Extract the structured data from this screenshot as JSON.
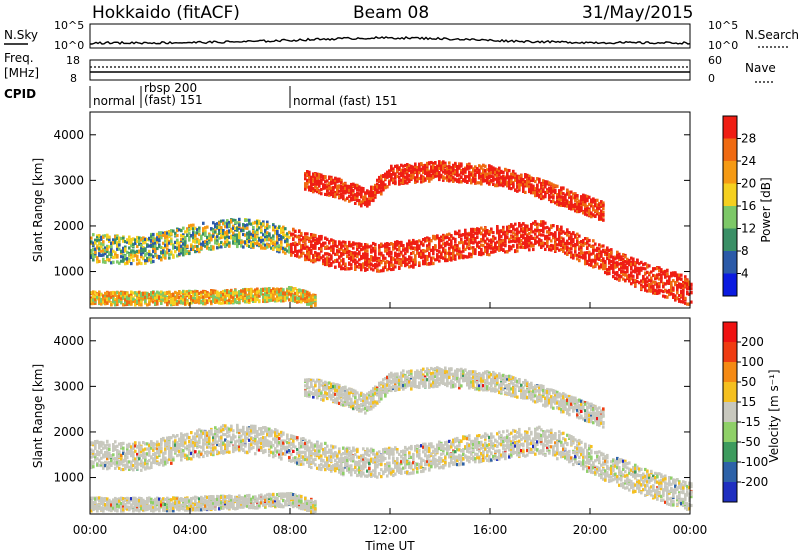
{
  "header": {
    "station": "Hokkaido (fitACF)",
    "beam": "Beam 08",
    "date": "31/May/2015"
  },
  "nsky_panel": {
    "left_label": "N.Sky",
    "left_ticks": [
      "10^5",
      "10^0"
    ],
    "right_ticks": [
      "10^5",
      "10^0"
    ],
    "legend_label": "N.Search"
  },
  "freq_panel": {
    "left_label_1": "Freq.",
    "left_label_2": "[MHz]",
    "left_ticks": [
      "18",
      "8"
    ],
    "right_ticks": [
      "60",
      "0"
    ],
    "legend_label": "Nave"
  },
  "cpid_panel": {
    "label": "CPID",
    "segments": [
      {
        "start_hour": 0.0,
        "lines": [
          "normal"
        ]
      },
      {
        "start_hour": 2.05,
        "lines": [
          "rbsp 200",
          "(fast)  151"
        ]
      },
      {
        "start_hour": 8.0,
        "lines": [
          "normal (fast)  151"
        ]
      }
    ]
  },
  "x_axis": {
    "title": "Time UT",
    "tick_labels": [
      "00:00",
      "04:00",
      "08:00",
      "12:00",
      "16:00",
      "20:00",
      "00:00"
    ],
    "tick_hours": [
      0,
      4,
      8,
      12,
      16,
      20,
      24
    ]
  },
  "chart_data": [
    {
      "type": "heatmap",
      "title": "",
      "xlabel": "Time UT",
      "ylabel": "Slant Range [km]",
      "x_range_hours": [
        0,
        24
      ],
      "ylim": [
        200,
        4500
      ],
      "y_tick_labels": [
        "1000",
        "2000",
        "3000",
        "4000"
      ],
      "y_ticks": [
        1000,
        2000,
        3000,
        4000
      ],
      "colorbar": {
        "label": "Power [dB]",
        "tick_labels": [
          "4",
          "8",
          "12",
          "16",
          "20",
          "24",
          "28"
        ],
        "colors": [
          "#0b1be0",
          "#2b5aa8",
          "#3a8f66",
          "#7dc868",
          "#f5d020",
          "#f59a14",
          "#ef6a12",
          "#ef1e14"
        ]
      },
      "bands": [
        {
          "name": "main",
          "points": [
            [
              0,
              1500
            ],
            [
              2,
              1450
            ],
            [
              4,
              1700
            ],
            [
              5.5,
              1850
            ],
            [
              7,
              1800
            ],
            [
              8.5,
              1550
            ],
            [
              10,
              1350
            ],
            [
              11.5,
              1300
            ],
            [
              13,
              1400
            ],
            [
              15,
              1600
            ],
            [
              16.5,
              1700
            ],
            [
              18,
              1800
            ],
            [
              19,
              1650
            ],
            [
              20.5,
              1250
            ],
            [
              22,
              900
            ],
            [
              24,
              550
            ]
          ],
          "width": 380
        },
        {
          "name": "upper",
          "points": [
            [
              8.5,
              3000
            ],
            [
              10,
              2800
            ],
            [
              11,
              2600
            ],
            [
              12,
              3100
            ],
            [
              14,
              3200
            ],
            [
              16,
              3100
            ],
            [
              17.5,
              2900
            ],
            [
              19,
              2600
            ],
            [
              20.5,
              2300
            ]
          ],
          "width": 260
        },
        {
          "name": "low",
          "points": [
            [
              0,
              400
            ],
            [
              3,
              400
            ],
            [
              6,
              450
            ],
            [
              8,
              500
            ],
            [
              9,
              350
            ]
          ],
          "width": 180
        }
      ]
    },
    {
      "type": "heatmap",
      "title": "",
      "xlabel": "Time UT",
      "ylabel": "Slant Range [km]",
      "x_range_hours": [
        0,
        24
      ],
      "ylim": [
        200,
        4500
      ],
      "y_tick_labels": [
        "1000",
        "2000",
        "3000",
        "4000"
      ],
      "y_ticks": [
        1000,
        2000,
        3000,
        4000
      ],
      "colorbar": {
        "label": "Velocity [m s⁻¹]",
        "tick_labels": [
          "200",
          "100",
          "50",
          "15",
          "-15",
          "-50",
          "-100",
          "-200"
        ],
        "colors": [
          "#1f2fc0",
          "#2d62a8",
          "#3d9b5e",
          "#8fd068",
          "#c8c8be",
          "#f5c020",
          "#f58a14",
          "#ef3c12",
          "#ef1212"
        ]
      },
      "bands": [
        {
          "name": "main",
          "points": [
            [
              0,
              1500
            ],
            [
              2,
              1450
            ],
            [
              4,
              1700
            ],
            [
              5.5,
              1850
            ],
            [
              7,
              1800
            ],
            [
              8.5,
              1550
            ],
            [
              10,
              1350
            ],
            [
              11.5,
              1300
            ],
            [
              13,
              1400
            ],
            [
              15,
              1600
            ],
            [
              16.5,
              1700
            ],
            [
              18,
              1800
            ],
            [
              19,
              1650
            ],
            [
              20.5,
              1250
            ],
            [
              22,
              900
            ],
            [
              24,
              550
            ]
          ],
          "width": 380
        },
        {
          "name": "upper",
          "points": [
            [
              8.5,
              3000
            ],
            [
              10,
              2800
            ],
            [
              11,
              2600
            ],
            [
              12,
              3100
            ],
            [
              14,
              3200
            ],
            [
              16,
              3100
            ],
            [
              17.5,
              2900
            ],
            [
              19,
              2600
            ],
            [
              20.5,
              2300
            ]
          ],
          "width": 260
        },
        {
          "name": "low",
          "points": [
            [
              0,
              400
            ],
            [
              3,
              400
            ],
            [
              6,
              450
            ],
            [
              8,
              500
            ],
            [
              9,
              350
            ]
          ],
          "width": 180
        }
      ]
    }
  ]
}
